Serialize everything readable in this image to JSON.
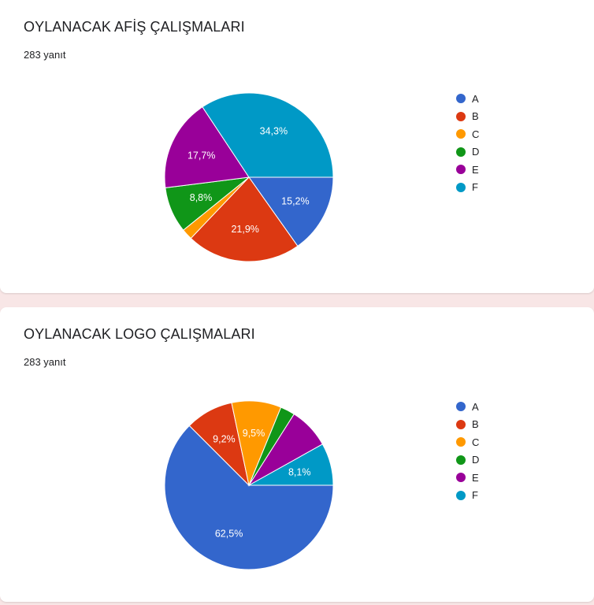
{
  "charts": [
    {
      "title": "OYLANACAK AFİŞ ÇALIŞMALARI",
      "count": "283 yanıt"
    },
    {
      "title": "OYLANACAK LOGO ÇALIŞMALARI",
      "count": "283 yanıt"
    }
  ],
  "colors": {
    "A": "#3366cc",
    "B": "#dc3912",
    "C": "#ff9900",
    "D": "#109618",
    "E": "#990099",
    "F": "#0099c6"
  },
  "chart_data": [
    {
      "type": "pie",
      "title": "OYLANACAK AFİŞ ÇALIŞMALARI",
      "legend_position": "right",
      "categories": [
        "A",
        "B",
        "C",
        "D",
        "E",
        "F"
      ],
      "values": [
        15.2,
        21.9,
        2.1,
        8.8,
        17.7,
        34.3
      ],
      "data_labels": [
        "15,2%",
        "21,9%",
        "",
        "8,8%",
        "17,7%",
        "34,3%"
      ]
    },
    {
      "type": "pie",
      "title": "OYLANACAK LOGO ÇALIŞMALARI",
      "legend_position": "right",
      "categories": [
        "A",
        "B",
        "C",
        "D",
        "E",
        "F"
      ],
      "values": [
        62.5,
        9.2,
        9.5,
        2.8,
        7.9,
        8.1
      ],
      "data_labels": [
        "62,5%",
        "9,2%",
        "9,5%",
        "",
        "",
        "8,1%"
      ]
    }
  ]
}
